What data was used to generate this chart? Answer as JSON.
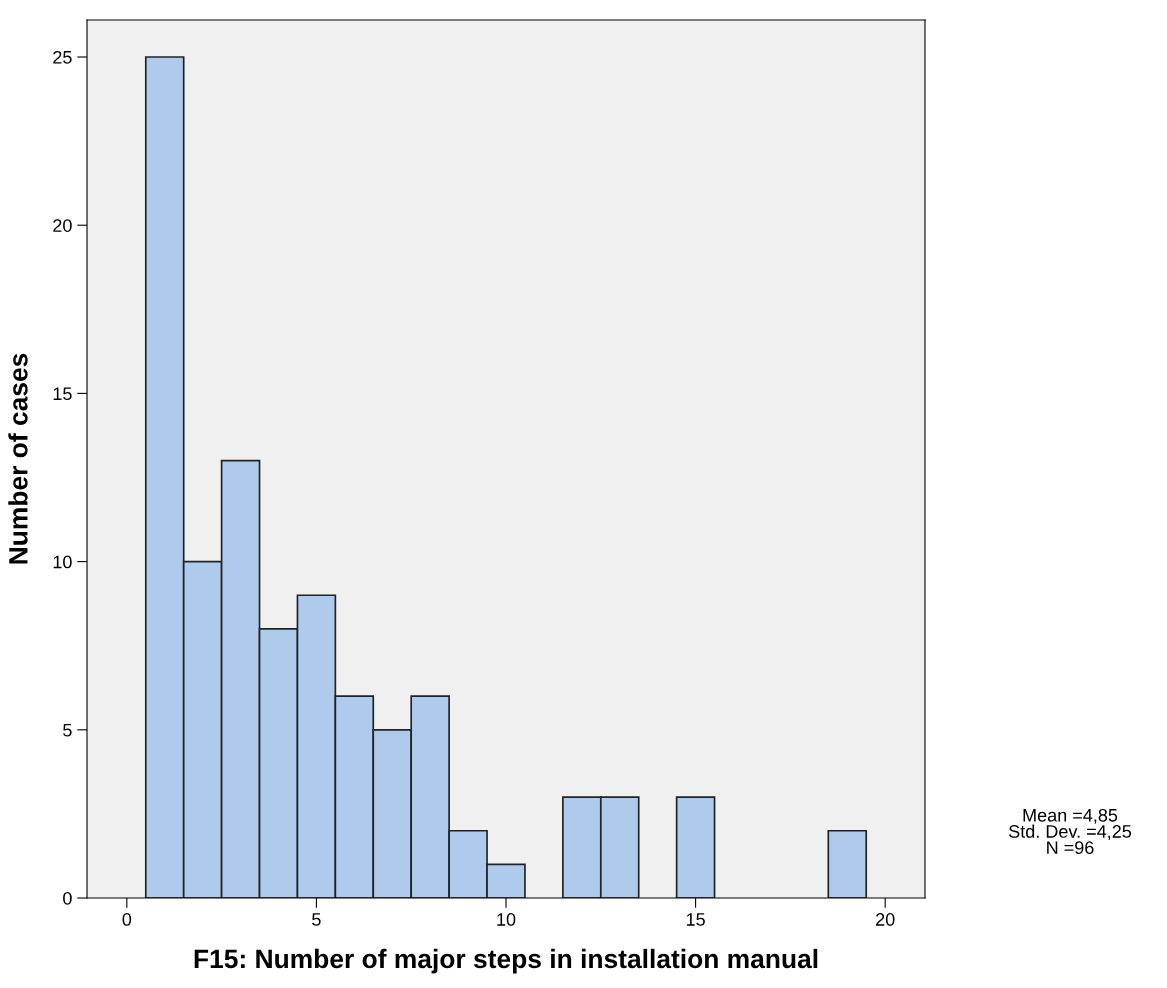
{
  "chart_data": {
    "type": "histogram",
    "xlabel": "F15: Number of major steps in installation manual",
    "ylabel": "Number of cases",
    "bins": [
      0.5,
      1.5,
      2.5,
      3.5,
      4.5,
      5.5,
      6.5,
      7.5,
      8.5,
      9.5,
      10.5,
      11.5,
      12.5,
      13.5,
      14.5,
      15.5,
      16.5,
      17.5,
      18.5,
      19.5
    ],
    "values": [
      25,
      10,
      13,
      8,
      9,
      6,
      5,
      6,
      2,
      1,
      0,
      3,
      3,
      0,
      3,
      0,
      0,
      0,
      2
    ],
    "color": "#aecbee",
    "xlim": [
      -1.05,
      21.05
    ],
    "xticks": [
      0,
      5,
      10,
      15,
      20
    ],
    "ylim": [
      0,
      26.1
    ],
    "yticks": [
      0,
      5,
      10,
      15,
      20,
      25
    ],
    "grid": false,
    "annotations": [
      "Mean =4,85\nStd. Dev. =4,25\nN =96"
    ]
  }
}
